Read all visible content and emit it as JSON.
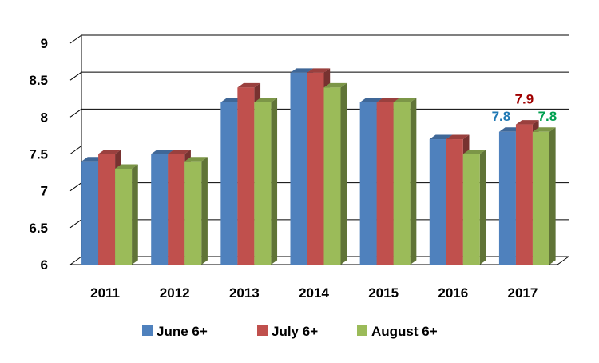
{
  "chart_data": {
    "type": "bar",
    "style": "3d-clustered-column",
    "categories": [
      "2011",
      "2012",
      "2013",
      "2014",
      "2015",
      "2016",
      "2017"
    ],
    "series": [
      {
        "name": "June 6+",
        "color": "#4F81BD",
        "values": [
          7.4,
          7.5,
          8.2,
          8.6,
          8.2,
          7.7,
          7.8
        ]
      },
      {
        "name": "July 6+",
        "color": "#C0504D",
        "values": [
          7.5,
          7.5,
          8.4,
          8.6,
          8.2,
          7.7,
          7.9
        ]
      },
      {
        "name": "August 6+",
        "color": "#9BBB59",
        "values": [
          7.3,
          7.4,
          8.2,
          8.4,
          8.2,
          7.5,
          7.8
        ]
      }
    ],
    "ylim": [
      6,
      9
    ],
    "yticks": [
      "6",
      "6.5",
      "7",
      "7.5",
      "8",
      "8.5",
      "9"
    ],
    "grid": true,
    "legend_position": "bottom",
    "data_labels": [
      {
        "category": "2017",
        "series": "June 6+",
        "text": "7.8",
        "color": "#1F78B4"
      },
      {
        "category": "2017",
        "series": "July 6+",
        "text": "7.9",
        "color": "#A00000"
      },
      {
        "category": "2017",
        "series": "August 6+",
        "text": "7.8",
        "color": "#00A050"
      }
    ]
  }
}
